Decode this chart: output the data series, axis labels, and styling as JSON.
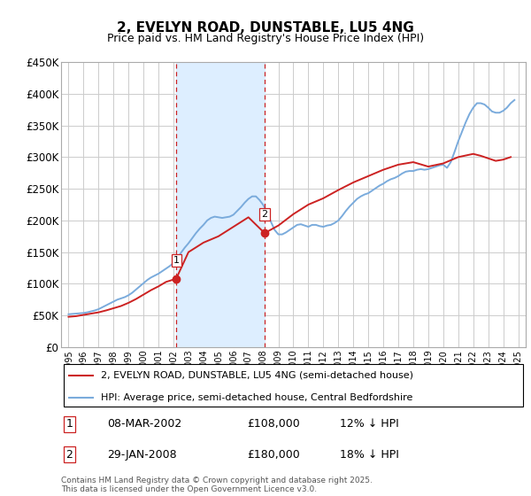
{
  "title": "2, EVELYN ROAD, DUNSTABLE, LU5 4NG",
  "subtitle": "Price paid vs. HM Land Registry's House Price Index (HPI)",
  "ylim": [
    0,
    450000
  ],
  "yticks": [
    0,
    50000,
    100000,
    150000,
    200000,
    250000,
    300000,
    350000,
    400000,
    450000
  ],
  "ytick_labels": [
    "£0",
    "£50K",
    "£100K",
    "£150K",
    "£200K",
    "£250K",
    "£300K",
    "£350K",
    "£400K",
    "£450K"
  ],
  "hpi_color": "#7aabdc",
  "price_color": "#cc2222",
  "shade_color": "#ddeeff",
  "vline_color": "#cc2222",
  "background_color": "#ffffff",
  "grid_color": "#cccccc",
  "transactions": [
    {
      "label": "1",
      "date_num": 2002.18,
      "price": 108000,
      "date_str": "08-MAR-2002",
      "price_str": "£108,000",
      "pct": "12% ↓ HPI"
    },
    {
      "label": "2",
      "date_num": 2008.08,
      "price": 180000,
      "date_str": "29-JAN-2008",
      "price_str": "£180,000",
      "pct": "18% ↓ HPI"
    }
  ],
  "legend_line1": "2, EVELYN ROAD, DUNSTABLE, LU5 4NG (semi-detached house)",
  "legend_line2": "HPI: Average price, semi-detached house, Central Bedfordshire",
  "footer": "Contains HM Land Registry data © Crown copyright and database right 2025.\nThis data is licensed under the Open Government Licence v3.0.",
  "hpi_data": {
    "years": [
      1995.0,
      1995.25,
      1995.5,
      1995.75,
      1996.0,
      1996.25,
      1996.5,
      1996.75,
      1997.0,
      1997.25,
      1997.5,
      1997.75,
      1998.0,
      1998.25,
      1998.5,
      1998.75,
      1999.0,
      1999.25,
      1999.5,
      1999.75,
      2000.0,
      2000.25,
      2000.5,
      2000.75,
      2001.0,
      2001.25,
      2001.5,
      2001.75,
      2002.0,
      2002.25,
      2002.5,
      2002.75,
      2003.0,
      2003.25,
      2003.5,
      2003.75,
      2004.0,
      2004.25,
      2004.5,
      2004.75,
      2005.0,
      2005.25,
      2005.5,
      2005.75,
      2006.0,
      2006.25,
      2006.5,
      2006.75,
      2007.0,
      2007.25,
      2007.5,
      2007.75,
      2008.0,
      2008.25,
      2008.5,
      2008.75,
      2009.0,
      2009.25,
      2009.5,
      2009.75,
      2010.0,
      2010.25,
      2010.5,
      2010.75,
      2011.0,
      2011.25,
      2011.5,
      2011.75,
      2012.0,
      2012.25,
      2012.5,
      2012.75,
      2013.0,
      2013.25,
      2013.5,
      2013.75,
      2014.0,
      2014.25,
      2014.5,
      2014.75,
      2015.0,
      2015.25,
      2015.5,
      2015.75,
      2016.0,
      2016.25,
      2016.5,
      2016.75,
      2017.0,
      2017.25,
      2017.5,
      2017.75,
      2018.0,
      2018.25,
      2018.5,
      2018.75,
      2019.0,
      2019.25,
      2019.5,
      2019.75,
      2020.0,
      2020.25,
      2020.5,
      2020.75,
      2021.0,
      2021.25,
      2021.5,
      2021.75,
      2022.0,
      2022.25,
      2022.5,
      2022.75,
      2023.0,
      2023.25,
      2023.5,
      2023.75,
      2024.0,
      2024.25,
      2024.5,
      2024.75
    ],
    "values": [
      52000,
      52500,
      53000,
      53500,
      54000,
      55000,
      56500,
      58000,
      60000,
      63000,
      66000,
      69000,
      72000,
      75000,
      77000,
      79000,
      82000,
      86000,
      91000,
      96000,
      101000,
      106000,
      110000,
      113000,
      116000,
      120000,
      124000,
      128000,
      133000,
      140000,
      149000,
      157000,
      164000,
      172000,
      180000,
      187000,
      193000,
      200000,
      204000,
      206000,
      205000,
      204000,
      205000,
      206000,
      209000,
      215000,
      221000,
      228000,
      234000,
      238000,
      238000,
      232000,
      224000,
      212000,
      198000,
      185000,
      178000,
      178000,
      181000,
      185000,
      189000,
      193000,
      194000,
      192000,
      190000,
      193000,
      193000,
      191000,
      190000,
      192000,
      193000,
      196000,
      200000,
      207000,
      215000,
      222000,
      228000,
      234000,
      238000,
      241000,
      243000,
      247000,
      251000,
      255000,
      258000,
      262000,
      265000,
      267000,
      270000,
      274000,
      277000,
      278000,
      278000,
      280000,
      281000,
      280000,
      281000,
      283000,
      285000,
      287000,
      288000,
      283000,
      292000,
      308000,
      325000,
      340000,
      355000,
      368000,
      378000,
      385000,
      385000,
      383000,
      378000,
      372000,
      370000,
      370000,
      373000,
      378000,
      385000,
      390000
    ]
  },
  "price_data": {
    "years": [
      1995.0,
      1995.5,
      1996.0,
      1997.0,
      1997.5,
      1998.5,
      1999.0,
      1999.5,
      2000.0,
      2000.5,
      2001.0,
      2001.5,
      2002.18,
      2003.0,
      2004.0,
      2005.0,
      2006.0,
      2007.0,
      2008.08,
      2009.0,
      2010.0,
      2011.0,
      2012.0,
      2013.0,
      2014.0,
      2015.0,
      2016.0,
      2017.0,
      2018.0,
      2019.0,
      2020.0,
      2021.0,
      2022.0,
      2022.5,
      2023.0,
      2023.5,
      2024.0,
      2024.5
    ],
    "values": [
      48000,
      49000,
      51000,
      55000,
      58000,
      65000,
      70000,
      76000,
      83000,
      90000,
      96000,
      103000,
      108000,
      150000,
      165000,
      175000,
      190000,
      205000,
      180000,
      192000,
      210000,
      225000,
      235000,
      248000,
      260000,
      270000,
      280000,
      288000,
      292000,
      285000,
      290000,
      300000,
      305000,
      302000,
      298000,
      294000,
      296000,
      300000
    ]
  }
}
